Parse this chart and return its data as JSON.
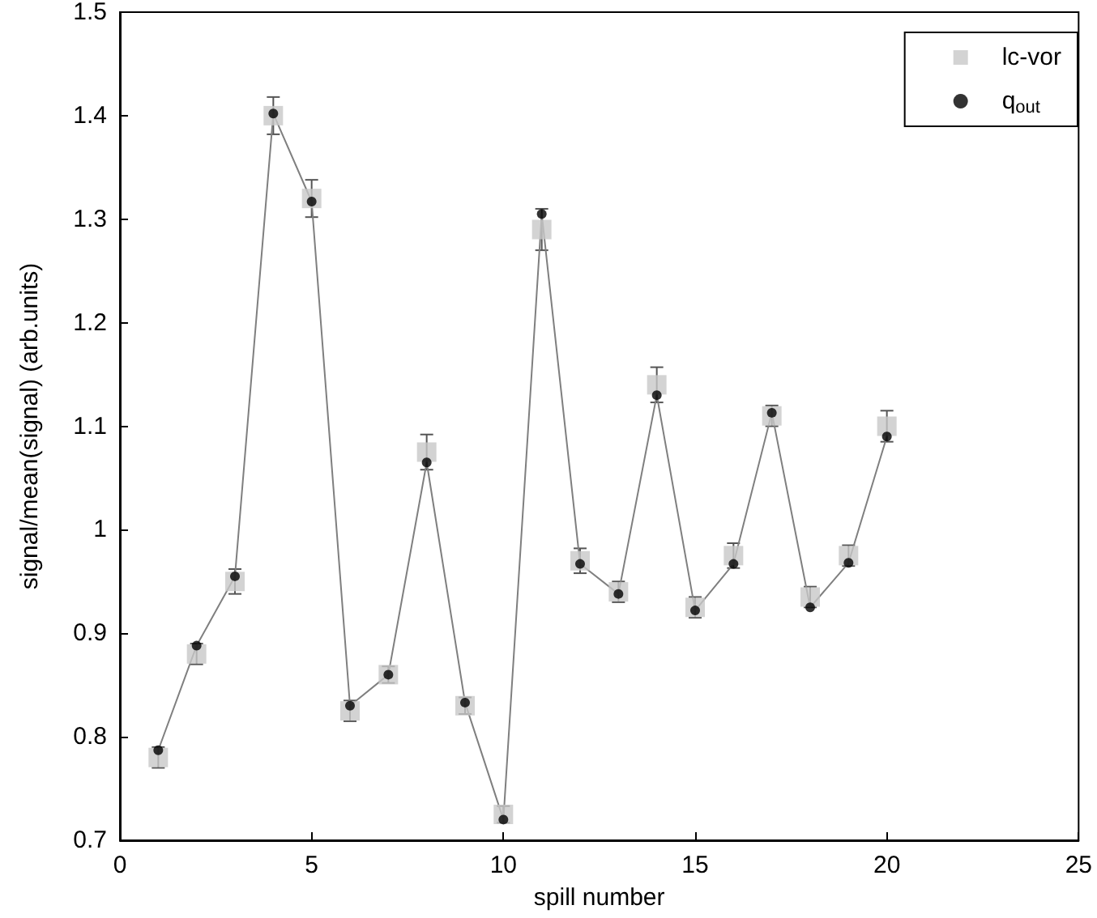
{
  "chart_data": {
    "type": "scatter",
    "xlabel": "spill number",
    "ylabel": "signal/mean(signal) (arb.units)",
    "x": [
      1,
      2,
      3,
      4,
      5,
      6,
      7,
      8,
      9,
      10,
      11,
      12,
      13,
      14,
      15,
      16,
      17,
      18,
      19,
      20
    ],
    "xlim": [
      0,
      25
    ],
    "xticks": [
      0,
      5,
      10,
      15,
      20,
      25
    ],
    "ylim": [
      0.7,
      1.5
    ],
    "yticks": [
      0.7,
      0.8,
      0.9,
      1,
      1.1,
      1.2,
      1.3,
      1.4,
      1.5
    ],
    "grid": false,
    "legend": "top right",
    "series": [
      {
        "type": "line",
        "color": "#7f7f7f",
        "marker": "none",
        "values": [
          0.787,
          0.888,
          0.955,
          1.402,
          1.317,
          0.83,
          0.86,
          1.065,
          0.833,
          0.72,
          1.305,
          0.967,
          0.938,
          1.13,
          0.922,
          0.967,
          1.113,
          0.925,
          0.968,
          1.09
        ]
      },
      {
        "name": "lc-vor",
        "color": "#c8c8c8",
        "marker": "square",
        "values": [
          0.78,
          0.88,
          0.95,
          1.4,
          1.32,
          0.825,
          0.86,
          1.075,
          0.83,
          0.725,
          1.29,
          0.97,
          0.94,
          1.14,
          0.925,
          0.975,
          1.11,
          0.935,
          0.975,
          1.1
        ],
        "errors": [
          0.01,
          0.01,
          0.012,
          0.018,
          0.018,
          0.01,
          0.008,
          0.017,
          0.008,
          0.008,
          0.02,
          0.012,
          0.01,
          0.017,
          0.01,
          0.012,
          0.01,
          0.01,
          0.01,
          0.015
        ]
      },
      {
        "name": "q$_{out}$",
        "color": "#000000",
        "marker": "circle",
        "values": [
          0.787,
          0.888,
          0.955,
          1.402,
          1.317,
          0.83,
          0.86,
          1.065,
          0.833,
          0.72,
          1.305,
          0.967,
          0.938,
          1.13,
          0.922,
          0.967,
          1.113,
          0.925,
          0.968,
          1.09
        ]
      }
    ]
  }
}
